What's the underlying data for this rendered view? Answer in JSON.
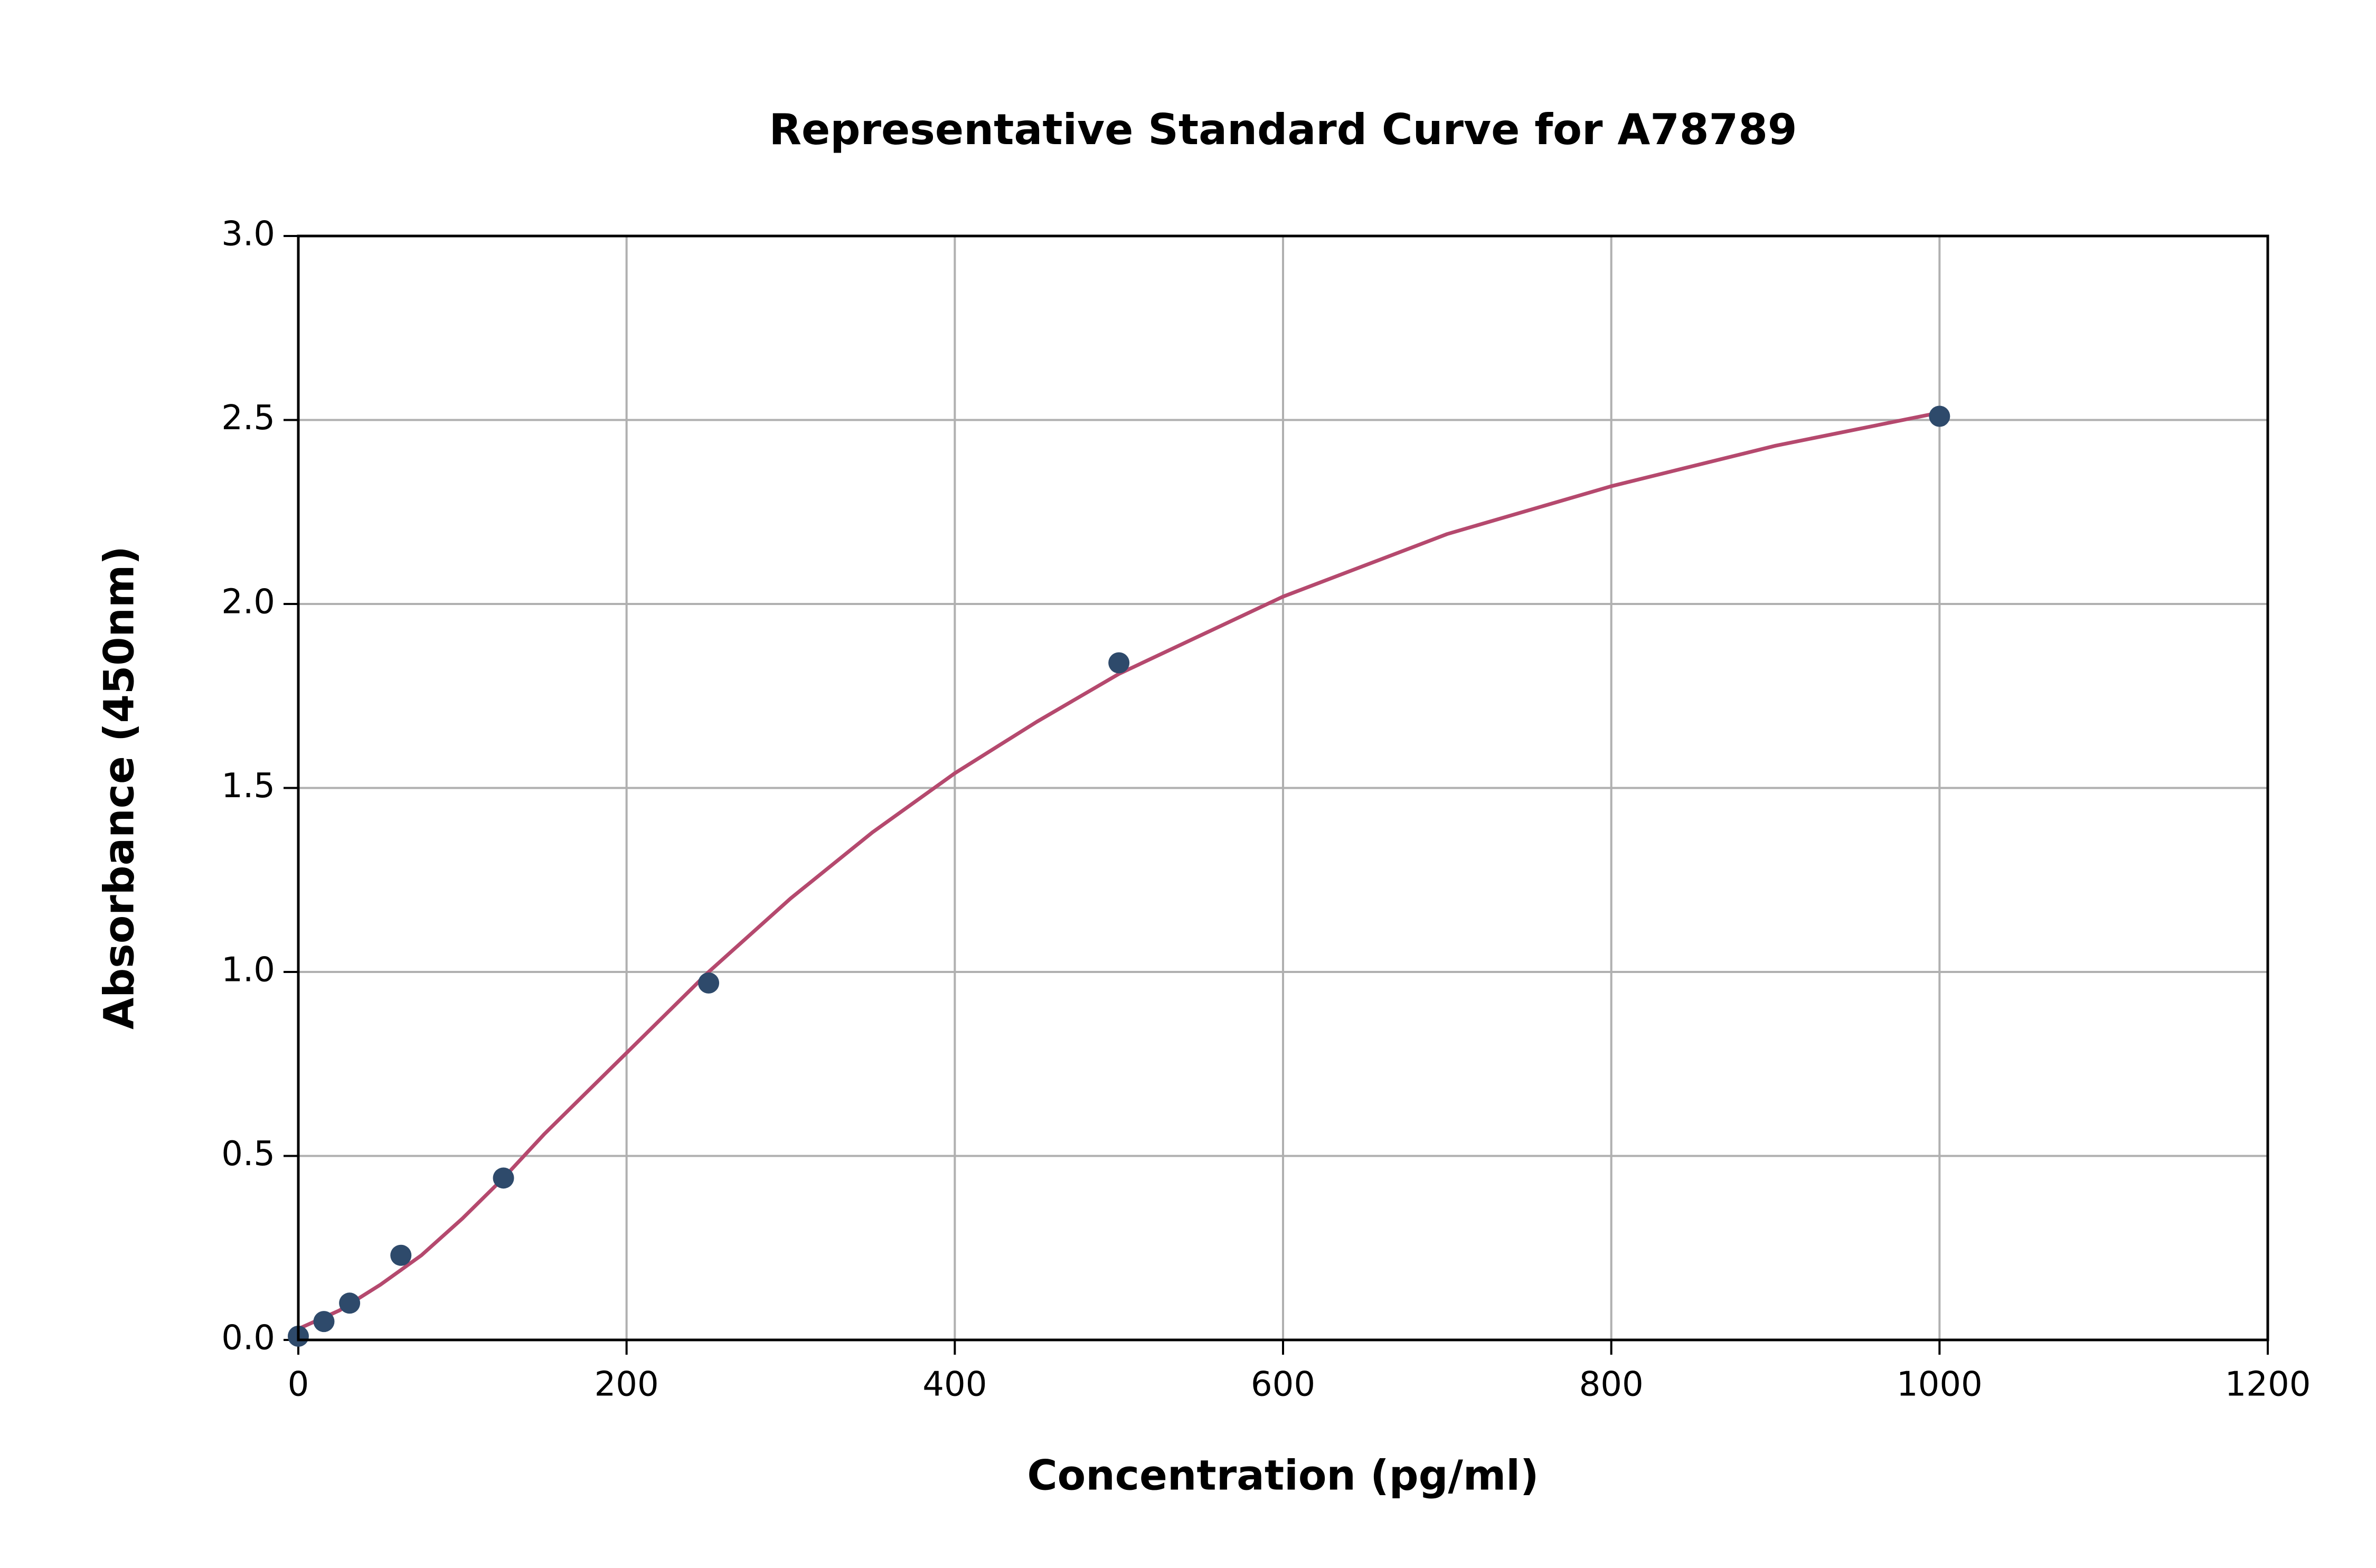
{
  "chart_data": {
    "type": "scatter",
    "title": "Representative Standard Curve for A78789",
    "x_label": "Concentration (pg/ml)",
    "y_label": "Absorbance (450nm)",
    "xlim": [
      0,
      1200
    ],
    "ylim": [
      0,
      3
    ],
    "xticks": [
      0,
      200,
      400,
      600,
      800,
      1000,
      1200
    ],
    "yticks": [
      {
        "value": 0,
        "label": "0.0"
      },
      0.5,
      {
        "value": 1,
        "label": "1.0"
      },
      1.5,
      {
        "value": 2,
        "label": "2.0"
      },
      2.5,
      {
        "value": 3,
        "label": "3.0"
      }
    ],
    "grid": true,
    "series": [
      {
        "type": "scatter",
        "color": "#2e4a6b",
        "x": [
          0,
          15.6,
          31.25,
          62.5,
          125,
          250,
          500,
          1000
        ],
        "values": [
          0.01,
          0.05,
          0.1,
          0.23,
          0.44,
          0.97,
          1.84,
          2.51
        ]
      },
      {
        "type": "line",
        "color": "#b5496e",
        "x": [
          0,
          25,
          50,
          75,
          100,
          125,
          150,
          175,
          200,
          250,
          300,
          350,
          400,
          450,
          500,
          600,
          700,
          800,
          900,
          1000
        ],
        "values": [
          0.03,
          0.08,
          0.15,
          0.23,
          0.33,
          0.44,
          0.56,
          0.67,
          0.78,
          1.0,
          1.2,
          1.38,
          1.54,
          1.68,
          1.81,
          2.02,
          2.19,
          2.32,
          2.43,
          2.52
        ]
      }
    ]
  }
}
